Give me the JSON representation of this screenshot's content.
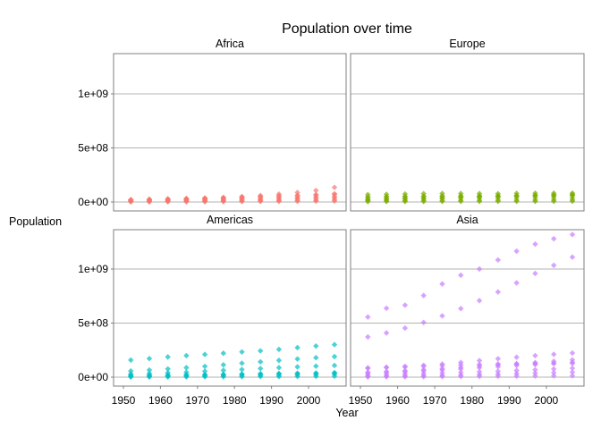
{
  "chart_data": {
    "type": "scatter",
    "title": "Population over time",
    "xlabel": "Year",
    "ylabel": "Population",
    "xlim": [
      1950,
      2007
    ],
    "ylim": [
      0,
      1400000000
    ],
    "x_ticks": [
      1950,
      1960,
      1970,
      1980,
      1990,
      2000
    ],
    "x_tick_labels": [
      "1950",
      "1960",
      "1970",
      "1980",
      "1990",
      "2000"
    ],
    "y_ticks": [
      0,
      500000000,
      1000000000
    ],
    "y_tick_labels": [
      "0e+00",
      "5e+08",
      "1e+09"
    ],
    "grid": true,
    "legend": "none",
    "years": [
      1952,
      1957,
      1962,
      1967,
      1972,
      1977,
      1982,
      1987,
      1992,
      1997,
      2002,
      2007
    ],
    "panels": [
      {
        "name": "Africa",
        "color": "#F8766D",
        "series": [
          {
            "values": [
              20000000,
              25000000,
              28000000,
              32000000,
              37000000,
              43000000,
              51000000,
              60000000,
              73000000,
              88000000,
              106000000,
              135000000
            ]
          },
          {
            "values": [
              22000000,
              25000000,
              28000000,
              31000000,
              34000000,
              37000000,
              44000000,
              50000000,
              57000000,
              62000000,
              69000000,
              76000000
            ]
          },
          {
            "values": [
              18000000,
              20000000,
              23000000,
              26000000,
              30000000,
              34000000,
              39000000,
              45000000,
              52000000,
              57000000,
              62000000,
              69000000
            ]
          },
          {
            "values": [
              14000000,
              15000000,
              17000000,
              19000000,
              21000000,
              24000000,
              28000000,
              31000000,
              36000000,
              40000000,
              45000000,
              50000000
            ]
          },
          {
            "values": [
              8000000,
              9000000,
              11000000,
              13000000,
              15000000,
              17000000,
              20000000,
              23000000,
              27000000,
              30000000,
              33000000,
              38000000
            ]
          },
          {
            "values": [
              4000000,
              5000000,
              5000000,
              6000000,
              7000000,
              8000000,
              9000000,
              11000000,
              13000000,
              15000000,
              17000000,
              20000000
            ]
          },
          {
            "values": [
              2000000,
              2000000,
              3000000,
              3000000,
              3000000,
              4000000,
              5000000,
              6000000,
              6000000,
              7000000,
              8000000,
              9000000
            ]
          }
        ]
      },
      {
        "name": "Europe",
        "color": "#7CAE00",
        "series": [
          {
            "values": [
              69000000,
              71000000,
              74000000,
              77000000,
              79000000,
              79000000,
              78000000,
              77000000,
              80000000,
              82000000,
              82000000,
              82000000
            ]
          },
          {
            "values": [
              48000000,
              50000000,
              52000000,
              54000000,
              56000000,
              57000000,
              57000000,
              57000000,
              57000000,
              58000000,
              58000000,
              61000000
            ]
          },
          {
            "values": [
              42000000,
              44000000,
              47000000,
              50000000,
              52000000,
              53000000,
              54000000,
              55000000,
              57000000,
              59000000,
              60000000,
              61000000
            ]
          },
          {
            "values": [
              22000000,
              25000000,
              28000000,
              32000000,
              37000000,
              42000000,
              47000000,
              52000000,
              58000000,
              63000000,
              67000000,
              71000000
            ]
          },
          {
            "values": [
              25000000,
              28000000,
              30000000,
              32000000,
              33000000,
              35000000,
              36000000,
              37000000,
              38000000,
              38000000,
              38000000,
              38000000
            ]
          },
          {
            "values": [
              10000000,
              11000000,
              12000000,
              13000000,
              14000000,
              15000000,
              16000000,
              17000000,
              17000000,
              18000000,
              18000000,
              19000000
            ]
          },
          {
            "values": [
              4000000,
              5000000,
              5000000,
              5000000,
              6000000,
              6000000,
              6000000,
              6000000,
              6000000,
              6000000,
              6000000,
              7000000
            ]
          }
        ]
      },
      {
        "name": "Americas",
        "color": "#00BFC4",
        "series": [
          {
            "values": [
              158000000,
              172000000,
              187000000,
              199000000,
              210000000,
              221000000,
              233000000,
              243000000,
              257000000,
              273000000,
              288000000,
              301000000
            ]
          },
          {
            "values": [
              57000000,
              66000000,
              76000000,
              88000000,
              100000000,
              114000000,
              129000000,
              142000000,
              155000000,
              168000000,
              180000000,
              190000000
            ]
          },
          {
            "values": [
              30000000,
              35000000,
              41000000,
              47000000,
              55000000,
              63000000,
              71000000,
              80000000,
              88000000,
              95000000,
              102000000,
              108000000
            ]
          },
          {
            "values": [
              18000000,
              20000000,
              21000000,
              23000000,
              24000000,
              26000000,
              29000000,
              32000000,
              34000000,
              36000000,
              38000000,
              40000000
            ]
          },
          {
            "values": [
              14000000,
              16000000,
              18000000,
              21000000,
              23000000,
              25000000,
              27000000,
              29000000,
              31000000,
              34000000,
              36000000,
              41000000
            ]
          },
          {
            "values": [
              6000000,
              7000000,
              8000000,
              10000000,
              11000000,
              13000000,
              15000000,
              17000000,
              19000000,
              22000000,
              24000000,
              28000000
            ]
          },
          {
            "values": [
              2000000,
              2000000,
              3000000,
              3000000,
              4000000,
              4000000,
              5000000,
              6000000,
              6000000,
              7000000,
              8000000,
              9000000
            ]
          }
        ]
      },
      {
        "name": "Asia",
        "color": "#C77CFF",
        "series": [
          {
            "values": [
              556000000,
              637000000,
              666000000,
              755000000,
              862000000,
              943000000,
              1000000000,
              1084000000,
              1165000000,
              1230000000,
              1280000000,
              1319000000
            ]
          },
          {
            "values": [
              372000000,
              409000000,
              454000000,
              506000000,
              567000000,
              634000000,
              708000000,
              788000000,
              872000000,
              959000000,
              1034000000,
              1110000000
            ]
          },
          {
            "values": [
              82000000,
              90000000,
              99000000,
              109000000,
              121000000,
              136000000,
              153000000,
              170000000,
              184000000,
              199000000,
              211000000,
              223000000
            ]
          },
          {
            "values": [
              86000000,
              91000000,
              95000000,
              100000000,
              107000000,
              113000000,
              118000000,
              122000000,
              124000000,
              125000000,
              127000000,
              127000000
            ]
          },
          {
            "values": [
              46000000,
              53000000,
              60000000,
              69000000,
              79000000,
              90000000,
              104000000,
              114000000,
              123000000,
              135000000,
              147000000,
              160000000
            ]
          },
          {
            "values": [
              37000000,
              43000000,
              50000000,
              58000000,
              66000000,
              75000000,
              87000000,
              97000000,
              108000000,
              117000000,
              127000000,
              137000000
            ]
          },
          {
            "values": [
              22000000,
              26000000,
              30000000,
              34000000,
              39000000,
              44000000,
              50000000,
              55000000,
              62000000,
              68000000,
              75000000,
              83000000
            ]
          },
          {
            "values": [
              8000000,
              10000000,
              12000000,
              14000000,
              17000000,
              20000000,
              24000000,
              28000000,
              33000000,
              37000000,
              41000000,
              46000000
            ]
          },
          {
            "values": [
              3000000,
              4000000,
              4000000,
              5000000,
              6000000,
              7000000,
              8000000,
              9000000,
              10000000,
              11000000,
              12000000,
              13000000
            ]
          }
        ]
      }
    ]
  }
}
